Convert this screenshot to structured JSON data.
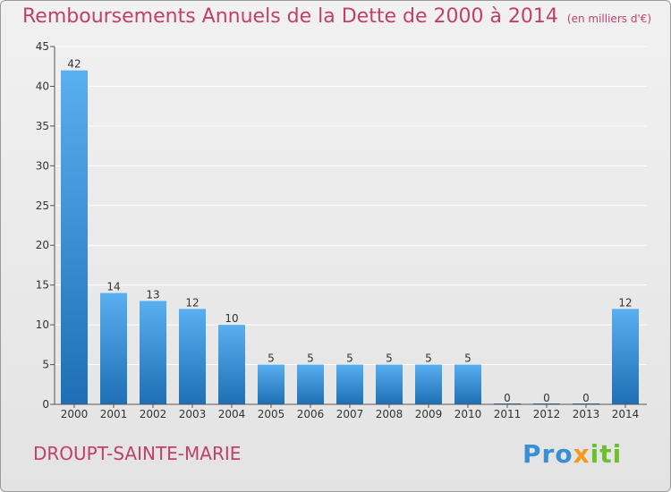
{
  "header": {
    "title": "Remboursements Annuels de la Dette de 2000 à 2014",
    "unit": "(en milliers d'€)"
  },
  "footer": {
    "commune": "DROUPT-SAINTE-MARIE",
    "logo": [
      "Pro",
      "x",
      "iti"
    ]
  },
  "colors": {
    "bar_top": "#5aaff0",
    "bar_bottom": "#1e6fb5",
    "title": "#c0406b",
    "grid": "#ffffff"
  },
  "chart_data": {
    "type": "bar",
    "title": "Remboursements Annuels de la Dette de 2000 à 2014",
    "categories": [
      "2000",
      "2001",
      "2002",
      "2003",
      "2004",
      "2005",
      "2006",
      "2007",
      "2008",
      "2009",
      "2010",
      "2011",
      "2012",
      "2013",
      "2014"
    ],
    "values": [
      42,
      14,
      13,
      12,
      10,
      5,
      5,
      5,
      5,
      5,
      5,
      0,
      0,
      0,
      12
    ],
    "ylim": [
      0,
      45
    ],
    "yticks": [
      0,
      5,
      10,
      15,
      20,
      25,
      30,
      35,
      40,
      45
    ],
    "grid": true,
    "xlabel": "",
    "ylabel": ""
  }
}
